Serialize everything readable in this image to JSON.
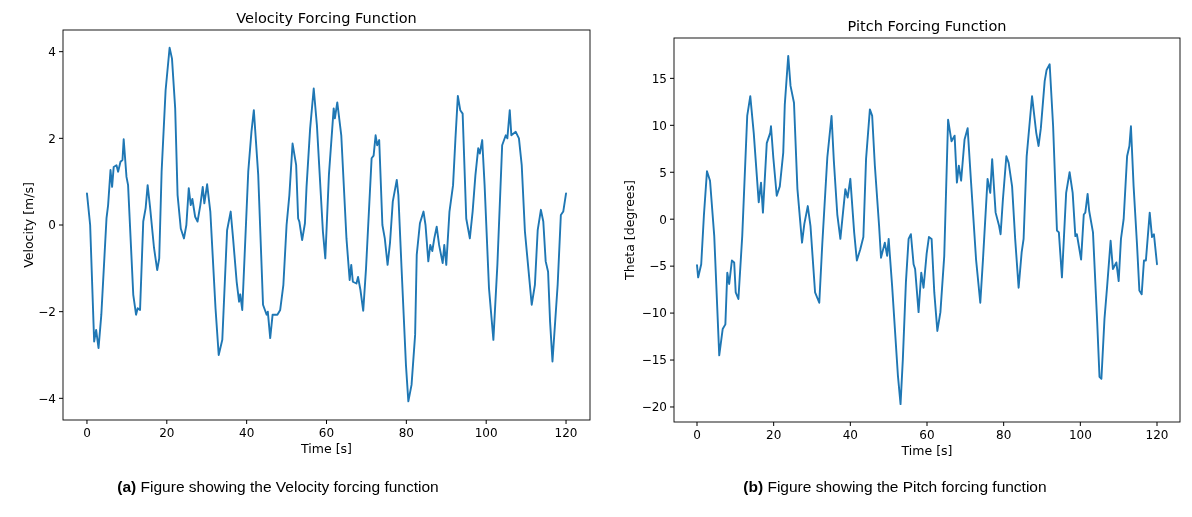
{
  "chart_data": [
    {
      "type": "line",
      "title": "Velocity Forcing Function",
      "xlabel": "Time [s]",
      "ylabel": "Velocity [m/s]",
      "annotations": [
        "(a) Figure showing the Velocity forcing function"
      ],
      "xlim": [
        -6,
        126
      ],
      "ylim": [
        -4.5,
        4.5
      ],
      "xticks": [
        0,
        20,
        40,
        60,
        80,
        100,
        120
      ],
      "yticks": [
        {
          "value": -4,
          "label": "−4"
        },
        {
          "value": -2,
          "label": "−2"
        },
        0,
        2,
        4
      ],
      "series": [
        {
          "color": "#1f77b4",
          "x": [
            0,
            0.8,
            1.8,
            2.3,
            2.9,
            3.6,
            4.9,
            5.3,
            5.9,
            6.3,
            6.7,
            7.4,
            7.8,
            8.4,
            8.9,
            9.2,
            9.9,
            10.3,
            11.6,
            12.3,
            12.7,
            13.3,
            14.1,
            14.7,
            15.2,
            15.8,
            16.8,
            17.6,
            18.1,
            18.7,
            19.7,
            20.7,
            21.3,
            22.1,
            22.7,
            23.5,
            24.3,
            24.9,
            25.5,
            26,
            26.4,
            27.1,
            27.7,
            28.4,
            29,
            29.4,
            30.1,
            30.9,
            32.2,
            33,
            33.9,
            35.1,
            36,
            36.6,
            37.5,
            38.1,
            38.4,
            38.9,
            40.4,
            41.2,
            41.8,
            42.9,
            44.1,
            45,
            45.3,
            45.9,
            46.5,
            47.7,
            48.4,
            49.2,
            50,
            50.7,
            51.5,
            52.4,
            52.9,
            53.2,
            53.9,
            54.6,
            55,
            55.9,
            56.8,
            57.6,
            59.1,
            59.7,
            60.6,
            61.8,
            62.1,
            62.7,
            63.7,
            65,
            65.8,
            66.2,
            66.6,
            67.5,
            67.9,
            68.5,
            69.2,
            69.9,
            71.3,
            71.8,
            72.3,
            72.7,
            73.2,
            74,
            74.6,
            75.3,
            75.9,
            76.6,
            77.6,
            78,
            78.8,
            79.9,
            80.5,
            81.3,
            82.2,
            82.6,
            83.4,
            84.3,
            84.8,
            85.5,
            86,
            86.5,
            87,
            87.6,
            88.2,
            89.1,
            89.5,
            90,
            90.8,
            91.7,
            92.3,
            92.9,
            93.5,
            94.1,
            95,
            95.9,
            96.6,
            97.3,
            98,
            98.4,
            99,
            99.6,
            100.7,
            101.8,
            102.8,
            104,
            104.9,
            105.3,
            105.9,
            106.3,
            107.4,
            108.2,
            108.9,
            109.7,
            111.4,
            112.2,
            112.9,
            113.7,
            114.3,
            114.9,
            115.5,
            116,
            116.6,
            117.9,
            118.7,
            119.3,
            120
          ],
          "values": [
            0.73,
            0,
            -2.69,
            -2.42,
            -2.84,
            -2.07,
            0.16,
            0.46,
            1.27,
            0.88,
            1.34,
            1.38,
            1.23,
            1.46,
            1.5,
            1.98,
            1.11,
            0.92,
            -1.61,
            -2.07,
            -1.92,
            -1.96,
            0.08,
            0.39,
            0.92,
            0.42,
            -0.53,
            -1.04,
            -0.77,
            1.23,
            3.11,
            4.09,
            3.84,
            2.69,
            0.69,
            -0.08,
            -0.31,
            0,
            0.85,
            0.46,
            0.6,
            0.19,
            0.08,
            0.46,
            0.88,
            0.5,
            0.94,
            0.31,
            -1.92,
            -3,
            -2.65,
            -0.12,
            0.31,
            -0.31,
            -1.31,
            -1.77,
            -1.6,
            -1.96,
            1.23,
            2.15,
            2.65,
            1.15,
            -1.84,
            -2.07,
            -2,
            -2.61,
            -2.07,
            -2.07,
            -1.96,
            -1.38,
            0,
            0.69,
            1.88,
            1.38,
            0.15,
            0.08,
            -0.35,
            0.04,
            0.88,
            2.23,
            3.15,
            2.3,
            -0.15,
            -0.77,
            1.15,
            2.69,
            2.46,
            2.83,
            2.07,
            -0.31,
            -1.27,
            -0.92,
            -1.31,
            -1.35,
            -1.2,
            -1.5,
            -1.98,
            -1,
            1.54,
            1.6,
            2.07,
            1.84,
            1.96,
            0,
            -0.31,
            -0.92,
            -0.42,
            0.54,
            1.04,
            0.69,
            -1,
            -3.23,
            -4.07,
            -3.69,
            -2.53,
            -0.69,
            0.04,
            0.31,
            0,
            -0.84,
            -0.46,
            -0.6,
            -0.31,
            -0.04,
            -0.46,
            -0.88,
            -0.46,
            -0.92,
            0.31,
            0.92,
            2,
            2.98,
            2.65,
            2.57,
            0.15,
            -0.31,
            0.31,
            1.15,
            1.77,
            1.65,
            1.96,
            0.92,
            -1.46,
            -2.65,
            -0.92,
            1.84,
            2.07,
            2,
            2.65,
            2.07,
            2.15,
            2,
            1.38,
            -0.15,
            -1.84,
            -1.38,
            -0.12,
            0.35,
            0.08,
            -0.84,
            -1.08,
            -2.23,
            -3.15,
            -1.38,
            0.23,
            0.31,
            0.73
          ]
        }
      ]
    },
    {
      "type": "line",
      "title": "Pitch Forcing Function",
      "xlabel": "Time [s]",
      "ylabel": "Theta [degrees]",
      "annotations": [
        "(b) Figure showing the Pitch forcing function"
      ],
      "xlim": [
        -6,
        126
      ],
      "ylim": [
        -21.6,
        19.3
      ],
      "xticks": [
        0,
        20,
        40,
        60,
        80,
        100,
        120
      ],
      "yticks": [
        {
          "value": -20,
          "label": "−20"
        },
        {
          "value": -15,
          "label": "−15"
        },
        {
          "value": -10,
          "label": "−10"
        },
        {
          "value": -5,
          "label": "−5"
        },
        0,
        5,
        10,
        15
      ],
      "series": [
        {
          "color": "#1f77b4",
          "x": [
            0,
            0.3,
            1.1,
            1.8,
            2.6,
            3.4,
            4.5,
            5.8,
            6.7,
            7.4,
            7.9,
            8.4,
            9.1,
            9.7,
            10.1,
            10.8,
            11.8,
            13.1,
            13.9,
            14.8,
            16.1,
            16.7,
            17.2,
            18.2,
            19.1,
            19.3,
            19.9,
            20.8,
            21.6,
            22.5,
            22.9,
            23.8,
            24.4,
            25.3,
            26.2,
            27.4,
            28,
            28.9,
            29.6,
            30.8,
            31.9,
            32.7,
            34,
            35.1,
            35.7,
            36.6,
            37.4,
            38.7,
            39.3,
            40,
            41,
            41.7,
            42.6,
            43.4,
            44.1,
            45.1,
            45.7,
            46.4,
            47.5,
            48,
            49,
            49.6,
            50,
            50.9,
            52.4,
            53.1,
            53.7,
            54.5,
            55.2,
            55.8,
            56.5,
            56.9,
            57.8,
            58.5,
            59.1,
            59.9,
            60.5,
            61.2,
            61.9,
            62.7,
            63.5,
            64.5,
            65.5,
            66.4,
            67.2,
            67.8,
            68.3,
            68.9,
            69.8,
            70.6,
            71.5,
            72.8,
            73.9,
            74.6,
            75.8,
            76.5,
            77,
            77.9,
            78.8,
            79.2,
            79.8,
            80.7,
            81.3,
            82.2,
            83,
            83.9,
            84.7,
            85.2,
            86,
            87.4,
            88.5,
            89.1,
            89.7,
            90.7,
            91.2,
            92,
            92.9,
            93.9,
            94.4,
            95.2,
            96.3,
            97.2,
            98,
            98.7,
            99.1,
            100.2,
            100.9,
            101.3,
            101.9,
            102.3,
            103.3,
            104.4,
            105,
            105.5,
            106.3,
            107,
            107.9,
            108.5,
            109.4,
            110,
            110.6,
            111.3,
            112.2,
            112.8,
            113.2,
            113.9,
            114.8,
            115.4,
            116,
            116.6,
            117.1,
            118.1,
            118.7,
            119.2,
            120
          ],
          "values": [
            -4.9,
            -6.2,
            -4.8,
            0.4,
            5.1,
            4.1,
            -1.8,
            -14.5,
            -11.7,
            -11.2,
            -5.7,
            -6.9,
            -4.4,
            -4.6,
            -7.8,
            -8.5,
            -1.8,
            11,
            13.1,
            9.2,
            1.8,
            3.9,
            0.7,
            8.1,
            9.2,
            9.9,
            6.6,
            2.5,
            3.5,
            7.1,
            12.2,
            17.4,
            14.2,
            12.4,
            3.2,
            -2.5,
            -0.5,
            1.4,
            -0.7,
            -7.8,
            -8.9,
            -2.5,
            6.6,
            11,
            6.2,
            0.5,
            -2.1,
            3.2,
            2.3,
            4.3,
            -1.4,
            -4.4,
            -3.2,
            -1.9,
            6.4,
            11.7,
            11,
            5.7,
            -0.7,
            -4.1,
            -2.5,
            -3.9,
            -2.1,
            -7.1,
            -16.6,
            -19.7,
            -14.9,
            -6.7,
            -2.1,
            -1.6,
            -4.8,
            -5.3,
            -9.9,
            -5.7,
            -7.3,
            -3.7,
            -1.9,
            -2.1,
            -7.8,
            -11.9,
            -9.9,
            -3.9,
            10.6,
            8.3,
            8.9,
            3.9,
            5.7,
            4.1,
            8.5,
            9.7,
            3.9,
            -4.3,
            -8.9,
            -4.3,
            4.3,
            2.8,
            6.4,
            0.7,
            -0.7,
            -1.6,
            2.1,
            6.7,
            6,
            3.5,
            -2.1,
            -7.3,
            -3.5,
            -2.1,
            6.7,
            13.1,
            9.2,
            7.8,
            9.7,
            14.7,
            15.9,
            16.5,
            9.9,
            -1.2,
            -1.4,
            -6.2,
            2.8,
            5,
            2.8,
            -1.8,
            -1.6,
            -4.3,
            0.5,
            0.7,
            2.7,
            0.9,
            -1.4,
            -11,
            -16.8,
            -17,
            -10.6,
            -7.1,
            -2.3,
            -5.3,
            -4.6,
            -6.6,
            -2.1,
            0,
            6.7,
            7.8,
            9.9,
            3.5,
            -2.8,
            -7.6,
            -8,
            -4.4,
            -4.4,
            0.7,
            -1.9,
            -1.6,
            -4.8
          ]
        }
      ]
    }
  ]
}
